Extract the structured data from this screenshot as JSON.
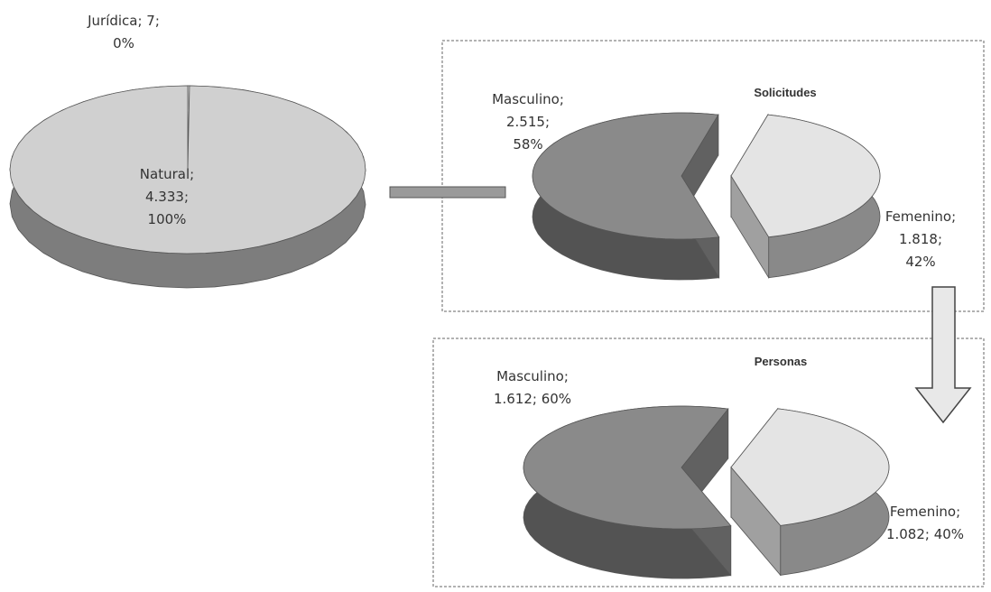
{
  "chart_data": [
    {
      "type": "pie",
      "categories": [
        "Jurídica",
        "Natural"
      ],
      "values": [
        7,
        4333
      ],
      "value_labels": [
        "Jurídica; 7;\n0%",
        "Natural;\n4.333;\n100%"
      ],
      "colors": [
        "#d8d8d8",
        "#d0d0d0"
      ]
    },
    {
      "type": "pie",
      "title": "Solicitudes",
      "categories": [
        "Masculino",
        "Femenino"
      ],
      "values": [
        2515,
        1818
      ],
      "value_labels": [
        "Masculino;\n2.515;\n58%",
        "Femenino;\n1.818;\n42%"
      ],
      "colors": [
        "#8a8a8a",
        "#e4e4e4"
      ]
    },
    {
      "type": "pie",
      "title": "Personas",
      "categories": [
        "Masculino",
        "Femenino"
      ],
      "values": [
        1612,
        1082
      ],
      "value_labels": [
        "Masculino;\n1.612; 60%",
        "Femenino;\n1.082; 40%"
      ],
      "colors": [
        "#8a8a8a",
        "#e4e4e4"
      ]
    }
  ]
}
